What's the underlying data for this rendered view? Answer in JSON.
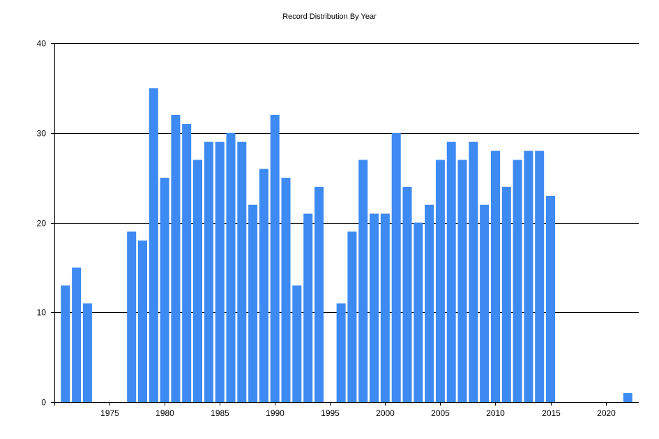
{
  "chart_data": {
    "type": "bar",
    "title": "Record Distribution By Year",
    "xlabel": "",
    "ylabel": "",
    "ylim": [
      0,
      40
    ],
    "xlim": [
      1970,
      2023
    ],
    "yticks": [
      0,
      10,
      20,
      30,
      40
    ],
    "xticks": [
      1975,
      1980,
      1985,
      1990,
      1995,
      2000,
      2005,
      2010,
      2015,
      2020
    ],
    "grid": "horizontal",
    "legend": "none",
    "bar_color": "#3d8af2",
    "x": [
      1971,
      1972,
      1973,
      1977,
      1978,
      1979,
      1980,
      1981,
      1982,
      1983,
      1984,
      1985,
      1986,
      1987,
      1988,
      1989,
      1990,
      1991,
      1992,
      1993,
      1994,
      1996,
      1997,
      1998,
      1999,
      2000,
      2001,
      2002,
      2003,
      2004,
      2005,
      2006,
      2007,
      2008,
      2009,
      2010,
      2011,
      2012,
      2013,
      2014,
      2015,
      2022
    ],
    "values": [
      13,
      15,
      11,
      19,
      18,
      35,
      25,
      32,
      31,
      27,
      29,
      29,
      30,
      29,
      22,
      26,
      32,
      25,
      13,
      21,
      24,
      11,
      19,
      27,
      21,
      21,
      30,
      24,
      20,
      22,
      27,
      29,
      27,
      29,
      22,
      28,
      24,
      27,
      28,
      28,
      23,
      1
    ]
  }
}
